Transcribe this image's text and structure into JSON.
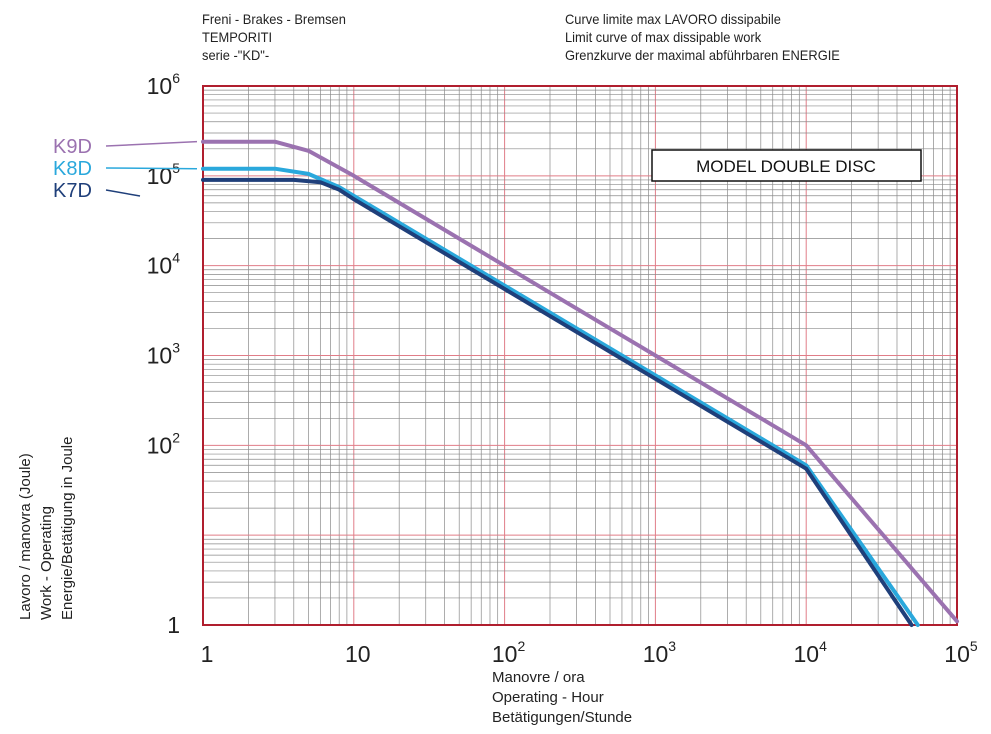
{
  "header": {
    "left_lines": [
      "Freni - Brakes - Bremsen",
      "TEMPORITI",
      "serie -\"KD\"-"
    ],
    "right_lines": [
      "Curve limite max LAVORO dissipabile",
      "Limit curve of max dissipable work",
      "Grenzkurve der maximal abführbaren ENERGIE"
    ]
  },
  "chart_data": {
    "type": "line",
    "annotation": "MODEL DOUBLE DISC",
    "xlabel_lines": [
      "Manovre / ora",
      "Operating - Hour",
      "Betätigungen/Stunde"
    ],
    "ylabel_lines": [
      "Lavoro / manovra (Joule)",
      "Work - Operating",
      "Energie/Betätigung in Joule"
    ],
    "x_scale": "log",
    "y_scale": "log",
    "xlim": [
      1,
      100000
    ],
    "ylim": [
      1,
      1000000
    ],
    "grid": true,
    "x_ticks": [
      {
        "base": "1",
        "exp": ""
      },
      {
        "base": "10",
        "exp": ""
      },
      {
        "base": "10",
        "exp": "2"
      },
      {
        "base": "10",
        "exp": "3"
      },
      {
        "base": "10",
        "exp": "4"
      },
      {
        "base": "10",
        "exp": "5"
      }
    ],
    "y_ticks": [
      {
        "base": "1",
        "exp": ""
      },
      {
        "base": "10",
        "exp": "2"
      },
      {
        "base": "10",
        "exp": "3"
      },
      {
        "base": "10",
        "exp": "4"
      },
      {
        "base": "10",
        "exp": "5"
      },
      {
        "base": "10",
        "exp": "6"
      }
    ],
    "series": [
      {
        "name": "K9D",
        "color": "#9b72b0",
        "x": [
          1,
          3,
          5,
          10,
          100,
          1000,
          10000,
          100000
        ],
        "y": [
          240000,
          240000,
          190000,
          100000,
          10000,
          1000,
          100,
          1.1
        ]
      },
      {
        "name": "K8D",
        "color": "#2aa8dc",
        "x": [
          1,
          3,
          5,
          8,
          10,
          100,
          1000,
          10000,
          55000
        ],
        "y": [
          120000,
          120000,
          105000,
          75000,
          60000,
          6000,
          600,
          60,
          1
        ]
      },
      {
        "name": "K7D",
        "color": "#1f3f7a",
        "x": [
          1,
          4,
          6,
          8,
          10,
          100,
          1000,
          10000,
          50000
        ],
        "y": [
          90000,
          90000,
          85000,
          70000,
          55000,
          5500,
          550,
          55,
          1
        ]
      }
    ]
  }
}
